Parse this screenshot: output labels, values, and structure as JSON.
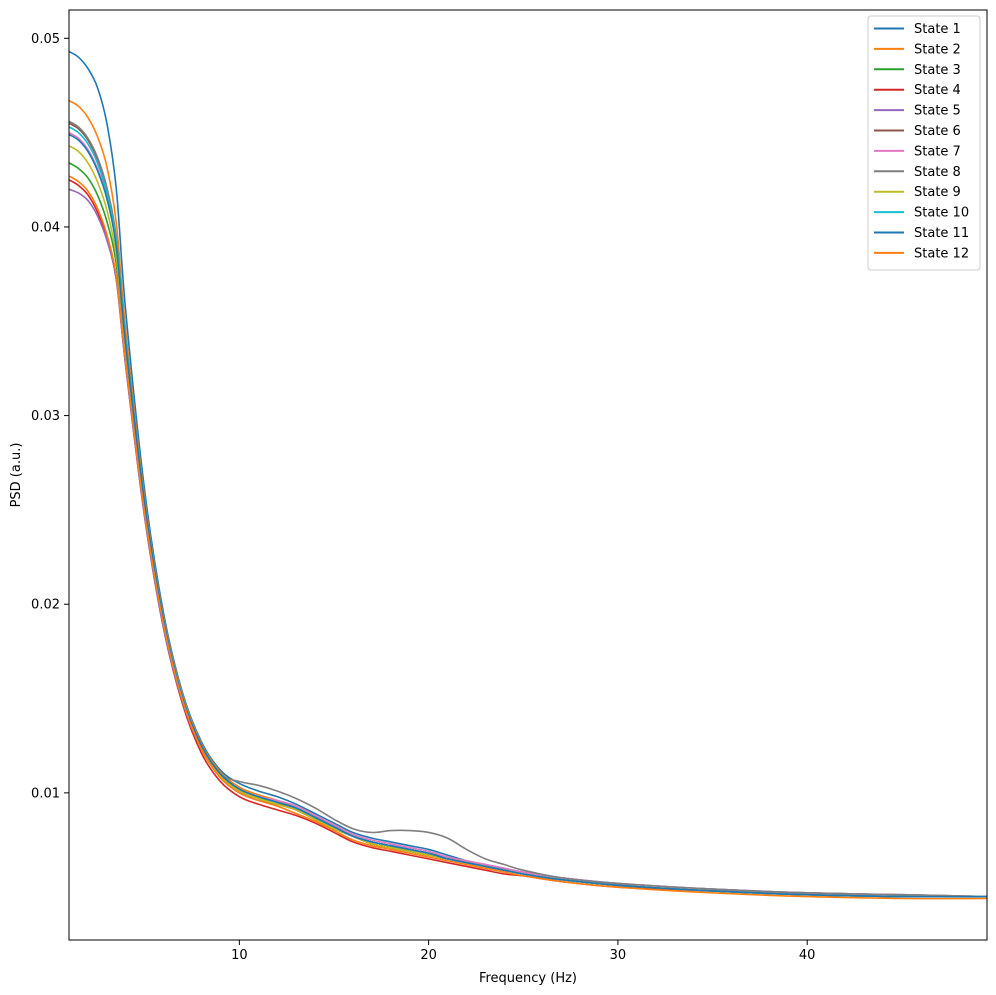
{
  "chart_data": {
    "type": "line",
    "title": "",
    "xlabel": "Frequency (Hz)",
    "ylabel": "PSD (a.u.)",
    "xlim": [
      1,
      49.5
    ],
    "ylim": [
      0.0022,
      0.0515
    ],
    "xticks": [
      10,
      20,
      30,
      40
    ],
    "yticks": [
      0.01,
      0.02,
      0.03,
      0.04,
      0.05
    ],
    "grid": false,
    "legend_position": "top-right",
    "x": [
      1,
      1.5,
      2,
      2.5,
      3,
      3.5,
      4,
      5,
      6,
      7,
      8,
      9,
      10,
      11,
      12,
      13,
      14,
      15,
      16,
      17,
      18,
      19,
      20,
      21,
      22,
      23,
      24,
      25,
      27,
      30,
      35,
      40,
      45,
      49.5
    ],
    "series": [
      {
        "name": "State 1",
        "color": "#1f77b4",
        "values": [
          0.0493,
          0.049,
          0.0484,
          0.0474,
          0.0455,
          0.042,
          0.0355,
          0.026,
          0.0195,
          0.0153,
          0.0127,
          0.0112,
          0.0105,
          0.0101,
          0.0098,
          0.0094,
          0.0089,
          0.0084,
          0.0079,
          0.0076,
          0.0074,
          0.0072,
          0.007,
          0.0067,
          0.0064,
          0.0062,
          0.006,
          0.0058,
          0.0055,
          0.0052,
          0.0049,
          0.0047,
          0.0046,
          0.0045
        ]
      },
      {
        "name": "State 2",
        "color": "#ff7f0e",
        "values": [
          0.0467,
          0.0464,
          0.0458,
          0.0448,
          0.0432,
          0.0402,
          0.0345,
          0.0256,
          0.0193,
          0.0152,
          0.0126,
          0.0111,
          0.0103,
          0.0099,
          0.0096,
          0.0092,
          0.0087,
          0.0082,
          0.0077,
          0.0073,
          0.0071,
          0.0069,
          0.0067,
          0.0065,
          0.0063,
          0.0061,
          0.0059,
          0.0057,
          0.0054,
          0.0051,
          0.0048,
          0.0046,
          0.0045,
          0.0045
        ]
      },
      {
        "name": "State 3",
        "color": "#2ca02c",
        "values": [
          0.0434,
          0.0431,
          0.0426,
          0.0417,
          0.0403,
          0.038,
          0.0332,
          0.025,
          0.019,
          0.015,
          0.0124,
          0.0109,
          0.0101,
          0.0097,
          0.0094,
          0.0091,
          0.0086,
          0.0081,
          0.0077,
          0.0073,
          0.0071,
          0.0069,
          0.0067,
          0.0065,
          0.0063,
          0.0061,
          0.0059,
          0.0057,
          0.0054,
          0.0051,
          0.0048,
          0.0046,
          0.0045,
          0.0045
        ]
      },
      {
        "name": "State 4",
        "color": "#d62728",
        "values": [
          0.0425,
          0.0422,
          0.0417,
          0.0408,
          0.0394,
          0.0372,
          0.0326,
          0.0246,
          0.0187,
          0.0147,
          0.0121,
          0.0106,
          0.0098,
          0.0094,
          0.0091,
          0.0088,
          0.0084,
          0.0079,
          0.0074,
          0.0071,
          0.0069,
          0.0067,
          0.0065,
          0.0063,
          0.0061,
          0.0059,
          0.0057,
          0.0056,
          0.0053,
          0.005,
          0.0048,
          0.0046,
          0.0045,
          0.0045
        ]
      },
      {
        "name": "State 5",
        "color": "#9467bd",
        "values": [
          0.042,
          0.0418,
          0.0414,
          0.0406,
          0.0393,
          0.0372,
          0.0326,
          0.0246,
          0.0187,
          0.0148,
          0.0123,
          0.0108,
          0.01,
          0.0096,
          0.0094,
          0.0091,
          0.0087,
          0.0082,
          0.0077,
          0.0074,
          0.0072,
          0.007,
          0.0068,
          0.0066,
          0.0063,
          0.0061,
          0.0059,
          0.0057,
          0.0054,
          0.0051,
          0.0048,
          0.0046,
          0.0045,
          0.0045
        ]
      },
      {
        "name": "State 6",
        "color": "#8c564b",
        "values": [
          0.0455,
          0.0452,
          0.0446,
          0.0436,
          0.042,
          0.0393,
          0.034,
          0.0254,
          0.0192,
          0.0151,
          0.0125,
          0.011,
          0.0102,
          0.0098,
          0.0095,
          0.0091,
          0.0086,
          0.0081,
          0.0077,
          0.0073,
          0.0071,
          0.0069,
          0.0067,
          0.0065,
          0.0063,
          0.0061,
          0.0059,
          0.0057,
          0.0054,
          0.0051,
          0.0048,
          0.0046,
          0.0045,
          0.0045
        ]
      },
      {
        "name": "State 7",
        "color": "#e377c2",
        "values": [
          0.045,
          0.0447,
          0.0441,
          0.0431,
          0.0416,
          0.039,
          0.0338,
          0.0253,
          0.0191,
          0.015,
          0.0124,
          0.0109,
          0.0101,
          0.0098,
          0.0096,
          0.0093,
          0.0088,
          0.0083,
          0.0078,
          0.0075,
          0.0073,
          0.0071,
          0.0069,
          0.0066,
          0.0064,
          0.0062,
          0.006,
          0.0058,
          0.0055,
          0.0052,
          0.0049,
          0.0047,
          0.0046,
          0.0045
        ]
      },
      {
        "name": "State 8",
        "color": "#7f7f7f",
        "values": [
          0.0456,
          0.0453,
          0.0447,
          0.0437,
          0.0421,
          0.0394,
          0.034,
          0.0253,
          0.019,
          0.0149,
          0.0124,
          0.011,
          0.0106,
          0.0104,
          0.0101,
          0.0097,
          0.0092,
          0.0086,
          0.0081,
          0.0079,
          0.008,
          0.008,
          0.0079,
          0.0076,
          0.007,
          0.0065,
          0.0062,
          0.0059,
          0.0055,
          0.0052,
          0.0049,
          0.0047,
          0.0046,
          0.0045
        ]
      },
      {
        "name": "State 9",
        "color": "#bcbd22",
        "values": [
          0.0443,
          0.044,
          0.0434,
          0.0424,
          0.0409,
          0.0384,
          0.0335,
          0.0251,
          0.019,
          0.015,
          0.0124,
          0.0109,
          0.0101,
          0.0097,
          0.0094,
          0.0091,
          0.0086,
          0.0081,
          0.0077,
          0.0073,
          0.0071,
          0.0069,
          0.0067,
          0.0065,
          0.0063,
          0.0061,
          0.0059,
          0.0057,
          0.0054,
          0.0051,
          0.0048,
          0.0046,
          0.0045,
          0.0045
        ]
      },
      {
        "name": "State 10",
        "color": "#17becf",
        "values": [
          0.0453,
          0.045,
          0.0444,
          0.0434,
          0.0418,
          0.0392,
          0.0339,
          0.0254,
          0.0192,
          0.0151,
          0.0125,
          0.011,
          0.0102,
          0.0098,
          0.0095,
          0.0092,
          0.0087,
          0.0082,
          0.0077,
          0.0074,
          0.0072,
          0.007,
          0.0068,
          0.0065,
          0.0063,
          0.0061,
          0.0059,
          0.0057,
          0.0054,
          0.0051,
          0.0048,
          0.0046,
          0.0045,
          0.0045
        ]
      },
      {
        "name": "State 11",
        "color": "#1f77b4",
        "values": [
          0.0449,
          0.0446,
          0.044,
          0.043,
          0.0415,
          0.0389,
          0.0337,
          0.0253,
          0.0191,
          0.015,
          0.0125,
          0.011,
          0.0102,
          0.0098,
          0.0095,
          0.0092,
          0.0087,
          0.0082,
          0.0077,
          0.0074,
          0.0072,
          0.007,
          0.0068,
          0.0065,
          0.0063,
          0.0061,
          0.0059,
          0.0057,
          0.0054,
          0.0051,
          0.0048,
          0.0046,
          0.0045,
          0.0045
        ]
      },
      {
        "name": "State 12",
        "color": "#ff7f0e",
        "values": [
          0.0427,
          0.0424,
          0.0419,
          0.041,
          0.0396,
          0.0374,
          0.0328,
          0.0248,
          0.0189,
          0.0149,
          0.0123,
          0.0108,
          0.01,
          0.0096,
          0.0093,
          0.0089,
          0.0085,
          0.008,
          0.0075,
          0.0072,
          0.007,
          0.0068,
          0.0066,
          0.0064,
          0.0062,
          0.006,
          0.0058,
          0.0056,
          0.0053,
          0.005,
          0.0047,
          0.0045,
          0.0044,
          0.0044
        ]
      }
    ]
  }
}
